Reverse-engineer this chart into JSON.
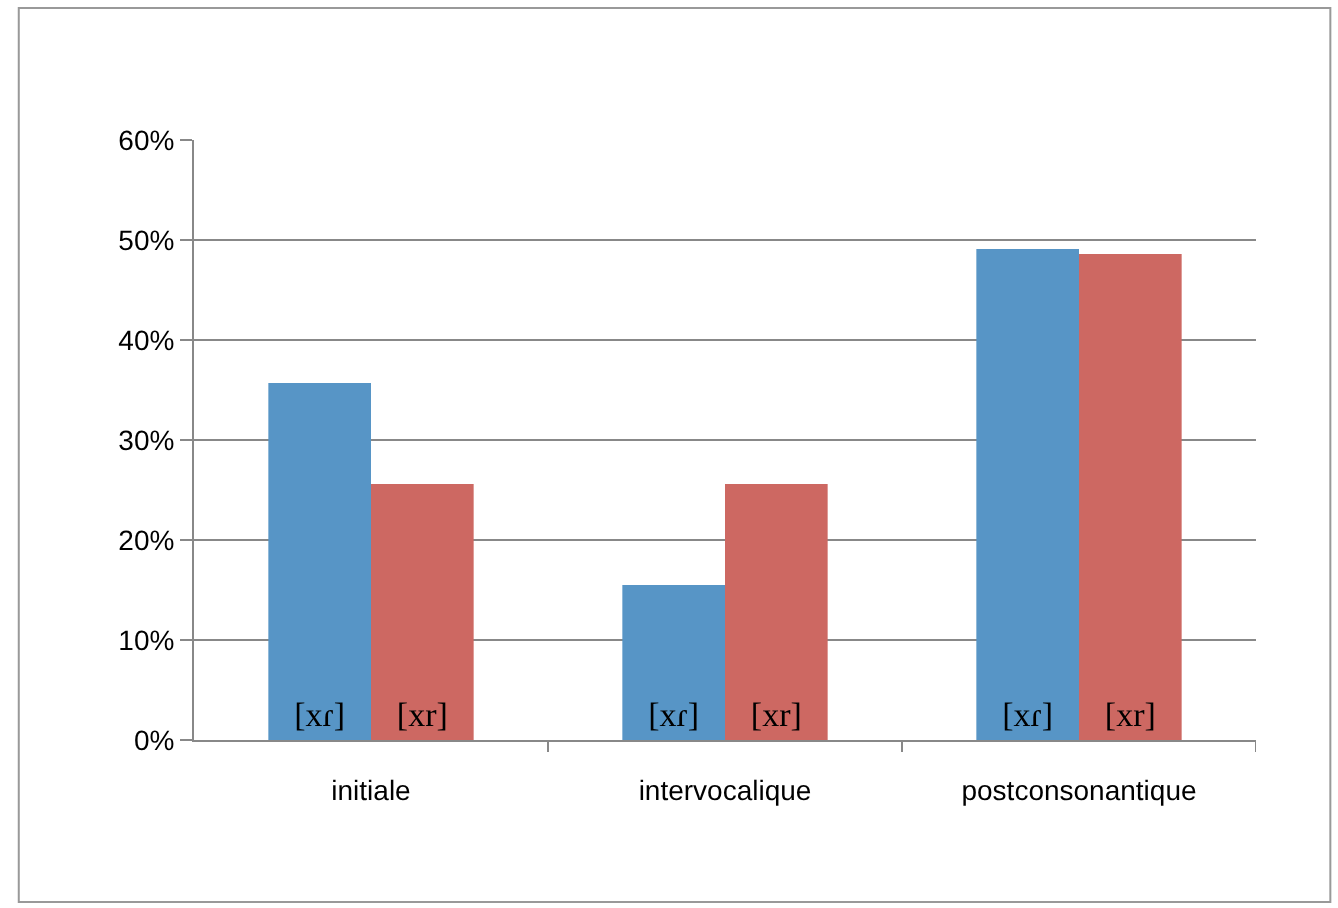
{
  "chart_data": {
    "type": "bar",
    "categories": [
      "initiale",
      "intervocalique",
      "postconsonantique"
    ],
    "series": [
      {
        "name": "[xɾ]",
        "color": "#5795c6",
        "values": [
          35.7,
          15.5,
          49.1
        ]
      },
      {
        "name": "[xr]",
        "color": "#cd6862",
        "values": [
          25.6,
          25.6,
          48.6
        ]
      }
    ],
    "ylim": [
      0,
      60
    ],
    "yticks": [
      {
        "value": 0,
        "label": "0%"
      },
      {
        "value": 10,
        "label": "10%"
      },
      {
        "value": 20,
        "label": "20%"
      },
      {
        "value": 30,
        "label": "30%"
      },
      {
        "value": 40,
        "label": "40%"
      },
      {
        "value": 50,
        "label": "50%"
      },
      {
        "value": 60,
        "label": "60%"
      }
    ],
    "grid": "y",
    "legend": false
  }
}
